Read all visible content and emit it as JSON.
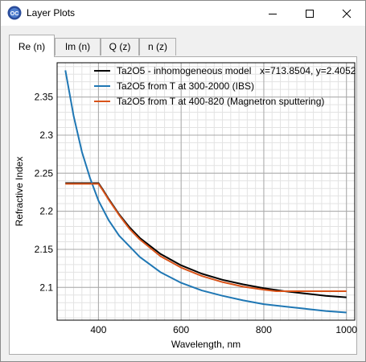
{
  "window": {
    "title": "Layer Plots",
    "icon": "app-logo-icon",
    "controls": [
      "minimize-icon",
      "maximize-icon",
      "close-icon"
    ]
  },
  "tabs": [
    {
      "label": "Re (n)",
      "active": true
    },
    {
      "label": "Im (n)",
      "active": false
    },
    {
      "label": "Q (z)",
      "active": false
    },
    {
      "label": "n (z)",
      "active": false
    }
  ],
  "colors": {
    "accent_black": "#000000",
    "accent_blue": "#1f77b4",
    "accent_orange": "#d95319"
  },
  "chart_data": {
    "type": "line",
    "xlabel": "Wavelength, nm",
    "ylabel": "Refractive Index",
    "xlim": [
      300,
      1020
    ],
    "ylim": [
      2.057,
      2.395
    ],
    "x_ticks": [
      "400",
      "600",
      "800",
      "1000"
    ],
    "y_ticks": [
      "2.1",
      "2.15",
      "2.2",
      "2.25",
      "2.3",
      "2.35"
    ],
    "x_tick_values": [
      400,
      600,
      800,
      1000
    ],
    "y_tick_values": [
      2.1,
      2.15,
      2.2,
      2.25,
      2.3,
      2.35
    ],
    "grid": true,
    "minor_grid": true,
    "legend_position": "top",
    "cursor_readout": "x=713.8504, y=2.4052",
    "series": [
      {
        "name": "Ta2O5 - inhomogeneous model",
        "color": "#000000",
        "x": [
          320,
          390,
          400,
          410,
          425,
          450,
          475,
          500,
          550,
          600,
          650,
          700,
          750,
          800,
          850,
          900,
          950,
          1000
        ],
        "y": [
          2.237,
          2.237,
          2.237,
          2.229,
          2.216,
          2.196,
          2.179,
          2.165,
          2.144,
          2.129,
          2.118,
          2.11,
          2.104,
          2.099,
          2.095,
          2.092,
          2.089,
          2.087
        ]
      },
      {
        "name": "Ta2O5 from T at 300-2000 (IBS)",
        "color": "#1f77b4",
        "x": [
          320,
          340,
          360,
          380,
          400,
          425,
          450,
          500,
          550,
          600,
          650,
          700,
          750,
          800,
          850,
          900,
          950,
          1000
        ],
        "y": [
          2.385,
          2.325,
          2.278,
          2.243,
          2.214,
          2.188,
          2.168,
          2.14,
          2.12,
          2.106,
          2.096,
          2.089,
          2.083,
          2.078,
          2.075,
          2.072,
          2.069,
          2.067
        ]
      },
      {
        "name": "Ta2O5 from T at 400-820 (Magnetron sputtering)",
        "color": "#d95319",
        "x": [
          320,
          390,
          400,
          410,
          425,
          450,
          475,
          500,
          550,
          600,
          650,
          700,
          750,
          800,
          830,
          850,
          900,
          950,
          1000
        ],
        "y": [
          2.236,
          2.236,
          2.236,
          2.228,
          2.215,
          2.195,
          2.177,
          2.163,
          2.141,
          2.126,
          2.115,
          2.107,
          2.101,
          2.097,
          2.095,
          2.095,
          2.095,
          2.095,
          2.095
        ]
      }
    ]
  }
}
